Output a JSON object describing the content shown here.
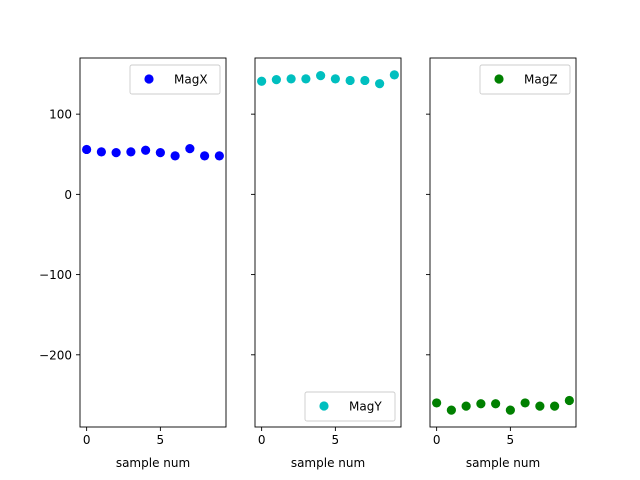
{
  "chart_data": {
    "type": "scatter",
    "shared_y": true,
    "ylim": [
      -290,
      170
    ],
    "yticks": [
      100,
      0,
      -100,
      -200
    ],
    "ytick_labels": [
      "100",
      "0",
      "−100",
      "−200"
    ],
    "panels": [
      {
        "type": "scatter",
        "xlabel": "sample num",
        "xlim": [
          -0.45,
          9.45
        ],
        "xticks": [
          0,
          5
        ],
        "xtick_labels": [
          "0",
          "5"
        ],
        "legend_loc": "upper right",
        "series": [
          {
            "name": "MagX",
            "color": "#0000ff",
            "x": [
              0,
              1,
              2,
              3,
              4,
              5,
              6,
              7,
              8,
              9
            ],
            "y": [
              56,
              53,
              52,
              53,
              55,
              52,
              48,
              57,
              48,
              48
            ]
          }
        ]
      },
      {
        "type": "scatter",
        "xlabel": "sample num",
        "xlim": [
          -0.45,
          9.45
        ],
        "xticks": [
          0,
          5
        ],
        "xtick_labels": [
          "0",
          "5"
        ],
        "legend_loc": "lower right",
        "series": [
          {
            "name": "MagY",
            "color": "#00bfbf",
            "x": [
              0,
              1,
              2,
              3,
              4,
              5,
              6,
              7,
              8,
              9
            ],
            "y": [
              141,
              143,
              144,
              144,
              148,
              144,
              142,
              142,
              138,
              149
            ]
          }
        ]
      },
      {
        "type": "scatter",
        "xlabel": "sample num",
        "xlim": [
          -0.45,
          9.45
        ],
        "xticks": [
          0,
          5
        ],
        "xtick_labels": [
          "0",
          "5"
        ],
        "legend_loc": "upper right",
        "series": [
          {
            "name": "MagZ",
            "color": "#008000",
            "x": [
              0,
              1,
              2,
              3,
              4,
              5,
              6,
              7,
              8,
              9
            ],
            "y": [
              -260,
              -269,
              -264,
              -261,
              -261,
              -269,
              -260,
              -264,
              -264,
              -257
            ]
          }
        ]
      }
    ]
  }
}
